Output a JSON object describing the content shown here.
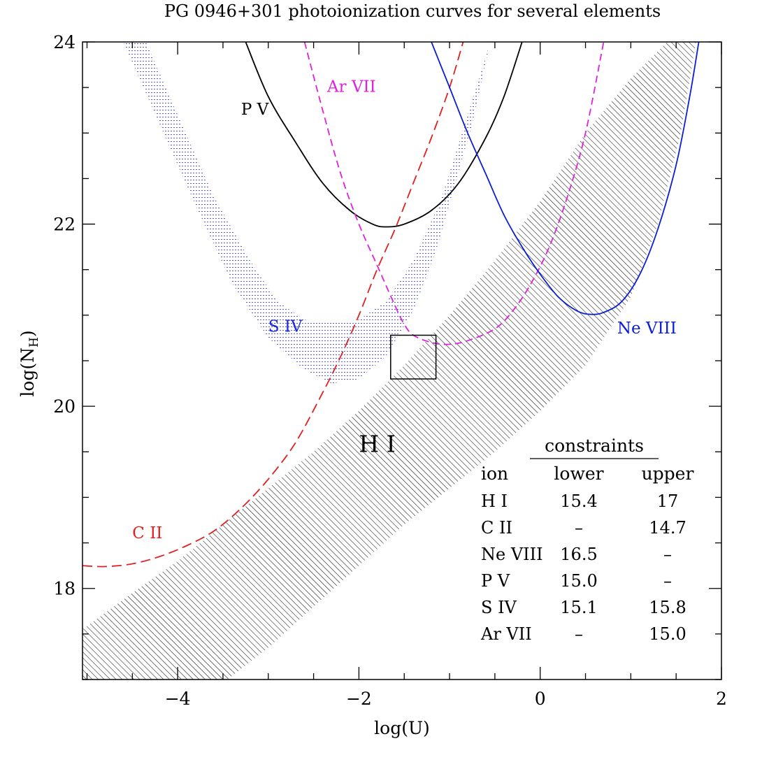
{
  "chart_data": {
    "type": "line",
    "title": "PG 0946+301 photoionization curves for several elements",
    "xlabel": "log(U)",
    "ylabel_base": "log(N",
    "ylabel_sub": "H",
    "ylabel_close": ")",
    "xlim": [
      -5.05,
      2.0
    ],
    "ylim": [
      17.0,
      24.0
    ],
    "x_ticks": [
      {
        "value": -4,
        "label": "−4"
      },
      {
        "value": -2,
        "label": "−2"
      },
      {
        "value": 0,
        "label": "0"
      },
      {
        "value": 2,
        "label": "2"
      }
    ],
    "y_ticks": [
      {
        "value": 18,
        "label": "18"
      },
      {
        "value": 20,
        "label": "20"
      },
      {
        "value": 22,
        "label": "22"
      },
      {
        "value": 24,
        "label": "24"
      }
    ],
    "grid": false,
    "series": [
      {
        "name": "P V",
        "color": "#000000",
        "dash": "none",
        "points": [
          [
            -3.25,
            24.0
          ],
          [
            -3.0,
            23.4
          ],
          [
            -2.7,
            22.9
          ],
          [
            -2.4,
            22.45
          ],
          [
            -2.1,
            22.15
          ],
          [
            -1.85,
            22.0
          ],
          [
            -1.7,
            21.97
          ],
          [
            -1.5,
            22.0
          ],
          [
            -1.2,
            22.15
          ],
          [
            -0.9,
            22.45
          ],
          [
            -0.6,
            22.95
          ],
          [
            -0.4,
            23.4
          ],
          [
            -0.2,
            24.0
          ]
        ]
      },
      {
        "name": "Ar VII",
        "color": "#e020e0",
        "dash": "10 6",
        "points": [
          [
            -2.6,
            24.0
          ],
          [
            -2.4,
            23.25
          ],
          [
            -2.2,
            22.55
          ],
          [
            -2.0,
            22.0
          ],
          [
            -1.8,
            21.55
          ],
          [
            -1.6,
            21.1
          ],
          [
            -1.5,
            20.9
          ],
          [
            -1.4,
            20.78
          ],
          [
            -1.2,
            20.7
          ],
          [
            -1.0,
            20.68
          ],
          [
            -0.8,
            20.72
          ],
          [
            -0.5,
            20.85
          ],
          [
            -0.3,
            21.05
          ],
          [
            -0.1,
            21.35
          ],
          [
            0.1,
            21.75
          ],
          [
            0.3,
            22.3
          ],
          [
            0.5,
            23.0
          ],
          [
            0.7,
            24.0
          ]
        ]
      },
      {
        "name": "C II",
        "color": "#e02020",
        "dash": "14 7",
        "points": [
          [
            -5.05,
            18.25
          ],
          [
            -4.8,
            18.24
          ],
          [
            -4.5,
            18.27
          ],
          [
            -4.2,
            18.35
          ],
          [
            -3.9,
            18.47
          ],
          [
            -3.6,
            18.63
          ],
          [
            -3.3,
            18.88
          ],
          [
            -3.0,
            19.2
          ],
          [
            -2.7,
            19.6
          ],
          [
            -2.4,
            20.15
          ],
          [
            -2.2,
            20.55
          ],
          [
            -2.0,
            21.0
          ],
          [
            -1.8,
            21.5
          ],
          [
            -1.6,
            21.95
          ],
          [
            -1.4,
            22.45
          ],
          [
            -1.2,
            22.95
          ],
          [
            -1.0,
            23.5
          ],
          [
            -0.85,
            24.0
          ]
        ]
      },
      {
        "name": "Ne VIII",
        "color": "#0a1ed6",
        "dash": "none",
        "points": [
          [
            -1.2,
            24.0
          ],
          [
            -1.0,
            23.5
          ],
          [
            -0.8,
            23.0
          ],
          [
            -0.6,
            22.55
          ],
          [
            -0.4,
            22.1
          ],
          [
            -0.2,
            21.75
          ],
          [
            0.0,
            21.45
          ],
          [
            0.2,
            21.2
          ],
          [
            0.4,
            21.05
          ],
          [
            0.55,
            21.01
          ],
          [
            0.7,
            21.03
          ],
          [
            0.9,
            21.15
          ],
          [
            1.1,
            21.45
          ],
          [
            1.3,
            21.95
          ],
          [
            1.5,
            22.65
          ],
          [
            1.65,
            23.4
          ],
          [
            1.75,
            24.0
          ]
        ]
      }
    ],
    "bands": [
      {
        "name": "H I",
        "color": "#000000",
        "pattern": "hatch",
        "upper": [
          [
            -5.05,
            17.55
          ],
          [
            -4.5,
            17.95
          ],
          [
            -4.0,
            18.3
          ],
          [
            -3.5,
            18.7
          ],
          [
            -3.0,
            19.1
          ],
          [
            -2.5,
            19.5
          ],
          [
            -2.0,
            19.95
          ],
          [
            -1.5,
            20.45
          ],
          [
            -1.0,
            21.0
          ],
          [
            -0.5,
            21.6
          ],
          [
            0.0,
            22.25
          ],
          [
            0.5,
            23.0
          ],
          [
            1.0,
            23.6
          ],
          [
            1.4,
            24.0
          ]
        ],
        "lower": [
          [
            -5.05,
            17.0
          ],
          [
            -3.45,
            17.0
          ],
          [
            -3.0,
            17.35
          ],
          [
            -2.5,
            17.8
          ],
          [
            -2.0,
            18.25
          ],
          [
            -1.5,
            18.7
          ],
          [
            -1.0,
            19.1
          ],
          [
            -0.5,
            19.5
          ],
          [
            0.0,
            19.95
          ],
          [
            0.5,
            20.45
          ],
          [
            1.0,
            21.2
          ],
          [
            1.3,
            22.0
          ],
          [
            1.55,
            23.0
          ],
          [
            1.72,
            24.0
          ]
        ]
      },
      {
        "name": "S IV",
        "color": "#5a5ad0",
        "pattern": "dots",
        "upper": [
          [
            -4.35,
            24.0
          ],
          [
            -4.0,
            23.2
          ],
          [
            -3.6,
            22.3
          ],
          [
            -3.2,
            21.6
          ],
          [
            -2.9,
            21.15
          ],
          [
            -2.6,
            20.95
          ],
          [
            -2.3,
            20.92
          ],
          [
            -2.0,
            20.95
          ],
          [
            -1.7,
            21.15
          ],
          [
            -1.4,
            21.6
          ],
          [
            -1.1,
            22.25
          ],
          [
            -0.8,
            23.2
          ],
          [
            -0.55,
            24.0
          ]
        ],
        "lower": [
          [
            -4.6,
            24.0
          ],
          [
            -4.2,
            23.1
          ],
          [
            -3.8,
            22.2
          ],
          [
            -3.4,
            21.35
          ],
          [
            -3.0,
            20.75
          ],
          [
            -2.6,
            20.4
          ],
          [
            -2.3,
            20.25
          ],
          [
            -2.0,
            20.3
          ],
          [
            -1.7,
            20.55
          ],
          [
            -1.4,
            21.05
          ],
          [
            -1.15,
            21.7
          ],
          [
            -0.95,
            22.4
          ],
          [
            -0.75,
            23.1
          ],
          [
            -0.55,
            24.0
          ]
        ]
      }
    ],
    "box": {
      "x": [
        -1.65,
        -1.15
      ],
      "y": [
        20.3,
        20.78
      ]
    },
    "curve_labels": [
      {
        "text": "P V",
        "x": -3.3,
        "y": 23.2,
        "color": "#000000",
        "size": 23
      },
      {
        "text": "Ar VII",
        "x": -2.35,
        "y": 23.45,
        "color": "#e020e0",
        "size": 23
      },
      {
        "text": "S IV",
        "x": -3.0,
        "y": 20.82,
        "color": "#1a2ae0",
        "size": 23
      },
      {
        "text": "Ne VIII",
        "x": 0.85,
        "y": 20.8,
        "color": "#0a1ed6",
        "size": 23
      },
      {
        "text": "H I",
        "x": -2.0,
        "y": 19.5,
        "color": "#000000",
        "size": 33
      },
      {
        "text": "C II",
        "x": -4.5,
        "y": 18.55,
        "color": "#e02020",
        "size": 23
      }
    ],
    "constraints_table": {
      "heading": "constraints",
      "columns": [
        "ion",
        "lower",
        "upper"
      ],
      "rows": [
        [
          "H I",
          "15.4",
          "17"
        ],
        [
          "C II",
          "–",
          "14.7"
        ],
        [
          "Ne VIII",
          "16.5",
          "–"
        ],
        [
          "P V",
          "15.0",
          "–"
        ],
        [
          "S IV",
          "15.1",
          "15.8"
        ],
        [
          "Ar VII",
          "–",
          "15.0"
        ]
      ]
    }
  }
}
